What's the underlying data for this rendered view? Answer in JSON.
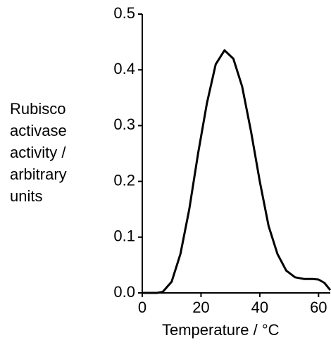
{
  "chart_data": {
    "type": "line",
    "ylabel": [
      "Rubisco",
      "activase",
      "activity /",
      "arbitrary",
      "units"
    ],
    "xlabel": "Temperature / °C",
    "x": [
      0,
      5,
      7,
      10,
      13,
      16,
      19,
      22,
      25,
      28,
      31,
      34,
      37,
      40,
      43,
      46,
      49,
      52,
      55,
      58,
      60,
      62,
      64
    ],
    "series": [
      {
        "color": "#000000",
        "values": [
          0.0,
          0.0,
          0.002,
          0.02,
          0.07,
          0.15,
          0.25,
          0.34,
          0.41,
          0.435,
          0.42,
          0.37,
          0.29,
          0.2,
          0.12,
          0.07,
          0.04,
          0.028,
          0.025,
          0.025,
          0.024,
          0.018,
          0.005
        ]
      }
    ],
    "xlim": [
      0,
      64
    ],
    "ylim": [
      0,
      0.5
    ],
    "xticks": [
      0,
      20,
      40,
      60
    ],
    "yticks": [
      {
        "value": 0,
        "label": "0.0"
      },
      0.1,
      0.2,
      0.3,
      0.4,
      0.5
    ]
  }
}
